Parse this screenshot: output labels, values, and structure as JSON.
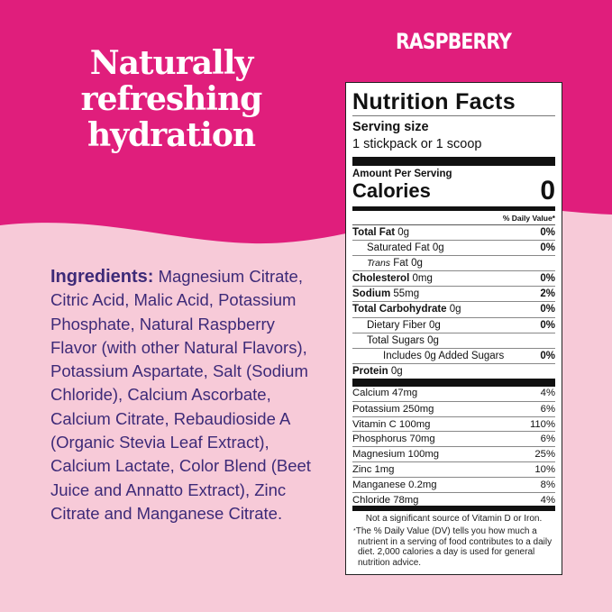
{
  "colors": {
    "top": "#e01e7c",
    "bottom": "#f7cad8",
    "ingredients_text": "#3d2a78"
  },
  "headline": [
    "Naturally",
    "refreshing",
    "hydration"
  ],
  "flavor": "RASPBERRY",
  "ingredients": {
    "heading": "Ingredients:",
    "text": "Magnesium Citrate, Citric Acid, Malic Acid, Potassium Phosphate, Natural Raspberry Flavor (with other Natural Flavors), Potassium Aspartate, Salt (Sodium Chloride), Calcium Ascorbate, Calcium Citrate, Rebaudioside A (Organic Stevia Leaf Extract), Calcium Lactate, Color Blend (Beet Juice and Annatto Extract), Zinc Citrate and Manganese Citrate."
  },
  "label": {
    "title": "Nutrition Facts",
    "serving_size_label": "Serving size",
    "serving_size": "1 stickpack or 1 scoop",
    "amount_per_serving": "Amount Per Serving",
    "calories_label": "Calories",
    "calories": "0",
    "dv_header": "% Daily Value*",
    "nutrients": [
      {
        "name": "Total Fat",
        "amount": "0g",
        "dv": "0%",
        "bold": true,
        "indent": 0
      },
      {
        "name": "Saturated Fat",
        "amount": "0g",
        "dv": "0%",
        "bold": false,
        "indent": 1
      },
      {
        "name": "Trans",
        "suffix": "Fat 0g",
        "amount": "",
        "dv": "",
        "bold": false,
        "indent": 1,
        "italic": true
      },
      {
        "name": "Cholesterol",
        "amount": "0mg",
        "dv": "0%",
        "bold": true,
        "indent": 0
      },
      {
        "name": "Sodium",
        "amount": "55mg",
        "dv": "2%",
        "bold": true,
        "indent": 0
      },
      {
        "name": "Total Carbohydrate",
        "amount": "0g",
        "dv": "0%",
        "bold": true,
        "indent": 0
      },
      {
        "name": "Dietary Fiber",
        "amount": "0g",
        "dv": "0%",
        "bold": false,
        "indent": 1
      },
      {
        "name": "Total Sugars",
        "amount": "0g",
        "dv": "",
        "bold": false,
        "indent": 1
      },
      {
        "name": "Includes 0g Added Sugars",
        "amount": "",
        "dv": "0%",
        "bold": false,
        "indent": 2
      },
      {
        "name": "Protein",
        "amount": "0g",
        "dv": "",
        "bold": true,
        "indent": 0
      }
    ],
    "vitamins": [
      {
        "name": "Calcium 47mg",
        "dv": "4%"
      },
      {
        "name": "Potassium 250mg",
        "dv": "6%"
      },
      {
        "name": "Vitamin C 100mg",
        "dv": "110%"
      },
      {
        "name": "Phosphorus 70mg",
        "dv": "6%"
      },
      {
        "name": "Magnesium 100mg",
        "dv": "25%"
      },
      {
        "name": "Zinc 1mg",
        "dv": "10%"
      },
      {
        "name": "Manganese 0.2mg",
        "dv": "8%"
      },
      {
        "name": "Chloride 78mg",
        "dv": "4%"
      }
    ],
    "footnote1": "Not a significant source of Vitamin D or Iron.",
    "footnote2": "The % Daily Value (DV) tells you how much a nutrient in a serving of food contributes to a daily diet. 2,000 calories a day is used for general nutrition advice."
  }
}
